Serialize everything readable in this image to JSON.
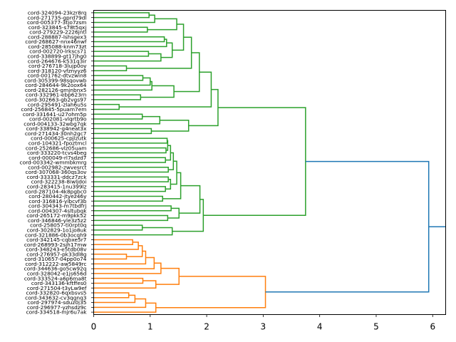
{
  "chart_data": {
    "type": "dendrogram",
    "title": "",
    "xlabel": "",
    "ylabel": "",
    "xlim": [
      0,
      6.23
    ],
    "xticks": [
      0,
      1,
      2,
      3,
      4,
      5,
      6
    ],
    "orientation": "leaves-left",
    "colors": {
      "cluster_green": "#2ca02c",
      "cluster_orange": "#ff7f0e",
      "above_threshold": "#1f77b4"
    },
    "leaves": [
      "cord-324094-23kzr8rq",
      "cord-271735-gprd79dl",
      "cord-005377-3tjo7zsm",
      "cord-323845-s78t5qxj",
      "cord-279229-2226jntl",
      "cord-288887-lshsgex3",
      "cord-268627-nnx46nwf",
      "cord-285088-knm73zt",
      "cord-002720-lrkscs71",
      "cord-338899-gt17jhg0",
      "cord-264676-k531q3ir",
      "cord-276718-3lujp0oy",
      "cord-318120-vfznyyz6",
      "cord-001762-dtvzwin8",
      "cord-305399-98sqovwb",
      "cord-284644-9k2oox64",
      "cord-282126-gmjnbnx5",
      "cord-332961-ebp623rn",
      "cord-302663-gb2vgs97",
      "cord-295491-zlah6u5s",
      "cord-256845-5puam7em",
      "cord-331641-u27ohm5p",
      "cord-002081-vlqrtb9o",
      "cord-004133-32wbg7qk",
      "cord-338942-g4neat3x",
      "cord-271434-30nh2gc7",
      "cord-000625-cpjlzutk",
      "cord-104321-fpoztmcl",
      "cord-252686-vlz05uam",
      "cord-333220-tcvs4beg",
      "cord-000049-rl7sdzd7",
      "cord-003342-wmmbkmrg",
      "cord-002982-zwvesrct",
      "cord-307068-360qs3ov",
      "cord-333331-ddcz7zck",
      "cord-322238-8iwljdoi",
      "cord-283415-1nu399lz",
      "cord-287104-4k8pgbc0",
      "cord-280442-jtyez46y",
      "cord-316816-yibcvf3b",
      "cord-304343-m7tbdfrj",
      "cord-004307-4sltubqk",
      "cord-265172-m9pkk52",
      "cord-346846-yle3z5z2",
      "cord-258057-ti0rpt0q",
      "cord-302829-1o1jo8uk",
      "cord-321886-0b3ocqh9",
      "cord-342145-cqbxe5r7",
      "cord-268993-2sjh17mw",
      "cord-348243-e5tdb08v",
      "cord-276957-pk33dl8g",
      "cord-310657-04pp0o74",
      "cord-312222-aw5849rc",
      "cord-344636-go5cw92q",
      "cord-328042-e1js656d",
      "cord-333524-a6p6ma8t",
      "cord-343136-kftffes0",
      "cord-271504-t3yLw9ef",
      "cord-332820-6qxbsvs5",
      "cord-343632-cv3qgnq3",
      "cord-297974-sduz0j35",
      "cord-296977-yzhsdz9c",
      "cord-334518-mjr6u7ak"
    ],
    "tree": {
      "h": 5.93,
      "color": "above_threshold",
      "c": [
        {
          "h": 3.75,
          "color": "cluster_green",
          "c": [
            {
              "h": 2.2,
              "c": [
                {
                  "h": 2.08,
                  "c": [
                    {
                      "h": 1.87,
                      "c": [
                        {
                          "h": 1.73,
                          "c": [
                            {
                              "h": 1.59,
                              "c": [
                                {
                                  "h": 1.47,
                                  "c": [
                                    {
                                      "h": 1.08,
                                      "c": [
                                        {
                                          "h": 0.98,
                                          "c": [
                                            0,
                                            1
                                          ]
                                        },
                                        2
                                      ]
                                    },
                                    {
                                      "h": 0.95,
                                      "c": [
                                        3,
                                        4
                                      ]
                                    }
                                  ]
                                },
                                {
                                  "h": 1.39,
                                  "c": [
                                    {
                                      "h": 1.29,
                                      "c": [
                                        {
                                          "h": 1.25,
                                          "c": [
                                            5,
                                            6
                                          ]
                                        },
                                        7
                                      ]
                                    },
                                    {
                                      "h": 1.19,
                                      "c": [
                                        {
                                          "h": 0.97,
                                          "c": [
                                            8,
                                            9
                                          ]
                                        },
                                        10
                                      ]
                                    }
                                  ]
                                }
                              ]
                            },
                            {
                              "h": 0.58,
                              "c": [
                                11,
                                12
                              ]
                            }
                          ]
                        },
                        {
                          "h": 1.42,
                          "c": [
                            {
                              "h": 1.03,
                              "c": [
                                {
                                  "h": 1.0,
                                  "c": [
                                    {
                                      "h": 0.87,
                                      "c": [
                                        13,
                                        14
                                      ]
                                    },
                                    15
                                  ]
                                },
                                16
                              ]
                            },
                            {
                              "h": 0.83,
                              "c": [
                                17,
                                18
                              ]
                            }
                          ]
                        }
                      ]
                    },
                    {
                      "h": 0.45,
                      "c": [
                        19,
                        20
                      ]
                    }
                  ]
                },
                {
                  "h": 1.68,
                  "c": [
                    {
                      "h": 1.17,
                      "c": [
                        {
                          "h": 0.86,
                          "c": [
                            21,
                            22
                          ]
                        },
                        23
                      ]
                    },
                    {
                      "h": 1.02,
                      "c": [
                        24,
                        25
                      ]
                    }
                  ]
                }
              ]
            },
            {
              "h": 1.94,
              "c": [
                {
                  "h": 1.88,
                  "c": [
                    {
                      "h": 1.54,
                      "c": [
                        {
                          "h": 1.47,
                          "c": [
                            {
                              "h": 1.41,
                              "c": [
                                {
                                  "h": 1.36,
                                  "c": [
                                    {
                                      "h": 1.31,
                                      "c": [
                                        {
                                          "h": 1.3,
                                          "c": [
                                            26,
                                            27
                                          ]
                                        },
                                        {
                                          "h": 1.28,
                                          "c": [
                                            28,
                                            29
                                          ]
                                        }
                                      ]
                                    },
                                    {
                                      "h": 1.27,
                                      "c": [
                                        30,
                                        31
                                      ]
                                    }
                                  ]
                                },
                                {
                                  "h": 1.32,
                                  "c": [
                                    32,
                                    33
                                  ]
                                }
                              ]
                            },
                            {
                              "h": 1.36,
                              "c": [
                                {
                                  "h": 1.32,
                                  "c": [
                                    34,
                                    35
                                  ]
                                },
                                {
                                  "h": 1.27,
                                  "c": [
                                    36,
                                    37
                                  ]
                                }
                              ]
                            }
                          ]
                        },
                        {
                          "h": 1.22,
                          "c": [
                            38,
                            39
                          ]
                        }
                      ]
                    },
                    {
                      "h": 1.51,
                      "c": [
                        {
                          "h": 1.37,
                          "c": [
                            40,
                            41
                          ]
                        },
                        {
                          "h": 1.31,
                          "c": [
                            42,
                            43
                          ]
                        }
                      ]
                    }
                  ]
                },
                {
                  "h": 1.39,
                  "c": [
                    {
                      "h": 0.86,
                      "c": [
                        44,
                        45
                      ]
                    },
                    46
                  ]
                }
              ]
            }
          ]
        },
        {
          "h": 3.04,
          "color": "cluster_orange",
          "c": [
            {
              "h": 1.51,
              "c": [
                {
                  "h": 1.19,
                  "c": [
                    {
                      "h": 1.07,
                      "c": [
                        {
                          "h": 0.92,
                          "c": [
                            {
                              "h": 0.86,
                              "c": [
                                {
                                  "h": 0.79,
                                  "c": [
                                    {
                                      "h": 0.69,
                                      "c": [
                                        47,
                                        48
                                      ]
                                    },
                                    49
                                  ]
                                },
                                {
                                  "h": 0.58,
                                  "c": [
                                    50,
                                    51
                                  ]
                                }
                              ]
                            },
                            52
                          ]
                        },
                        53
                      ]
                    },
                    54
                  ]
                },
                {
                  "h": 1.1,
                  "c": [
                    {
                      "h": 0.87,
                      "c": [
                        55,
                        56
                      ]
                    },
                    57
                  ]
                }
              ]
            },
            {
              "h": 1.1,
              "c": [
                {
                  "h": 0.92,
                  "c": [
                    {
                      "h": 0.73,
                      "c": [
                        {
                          "h": 0.62,
                          "c": [
                            58,
                            59
                          ]
                        },
                        60
                      ]
                    },
                    61
                  ]
                },
                62
              ]
            }
          ]
        }
      ]
    }
  }
}
